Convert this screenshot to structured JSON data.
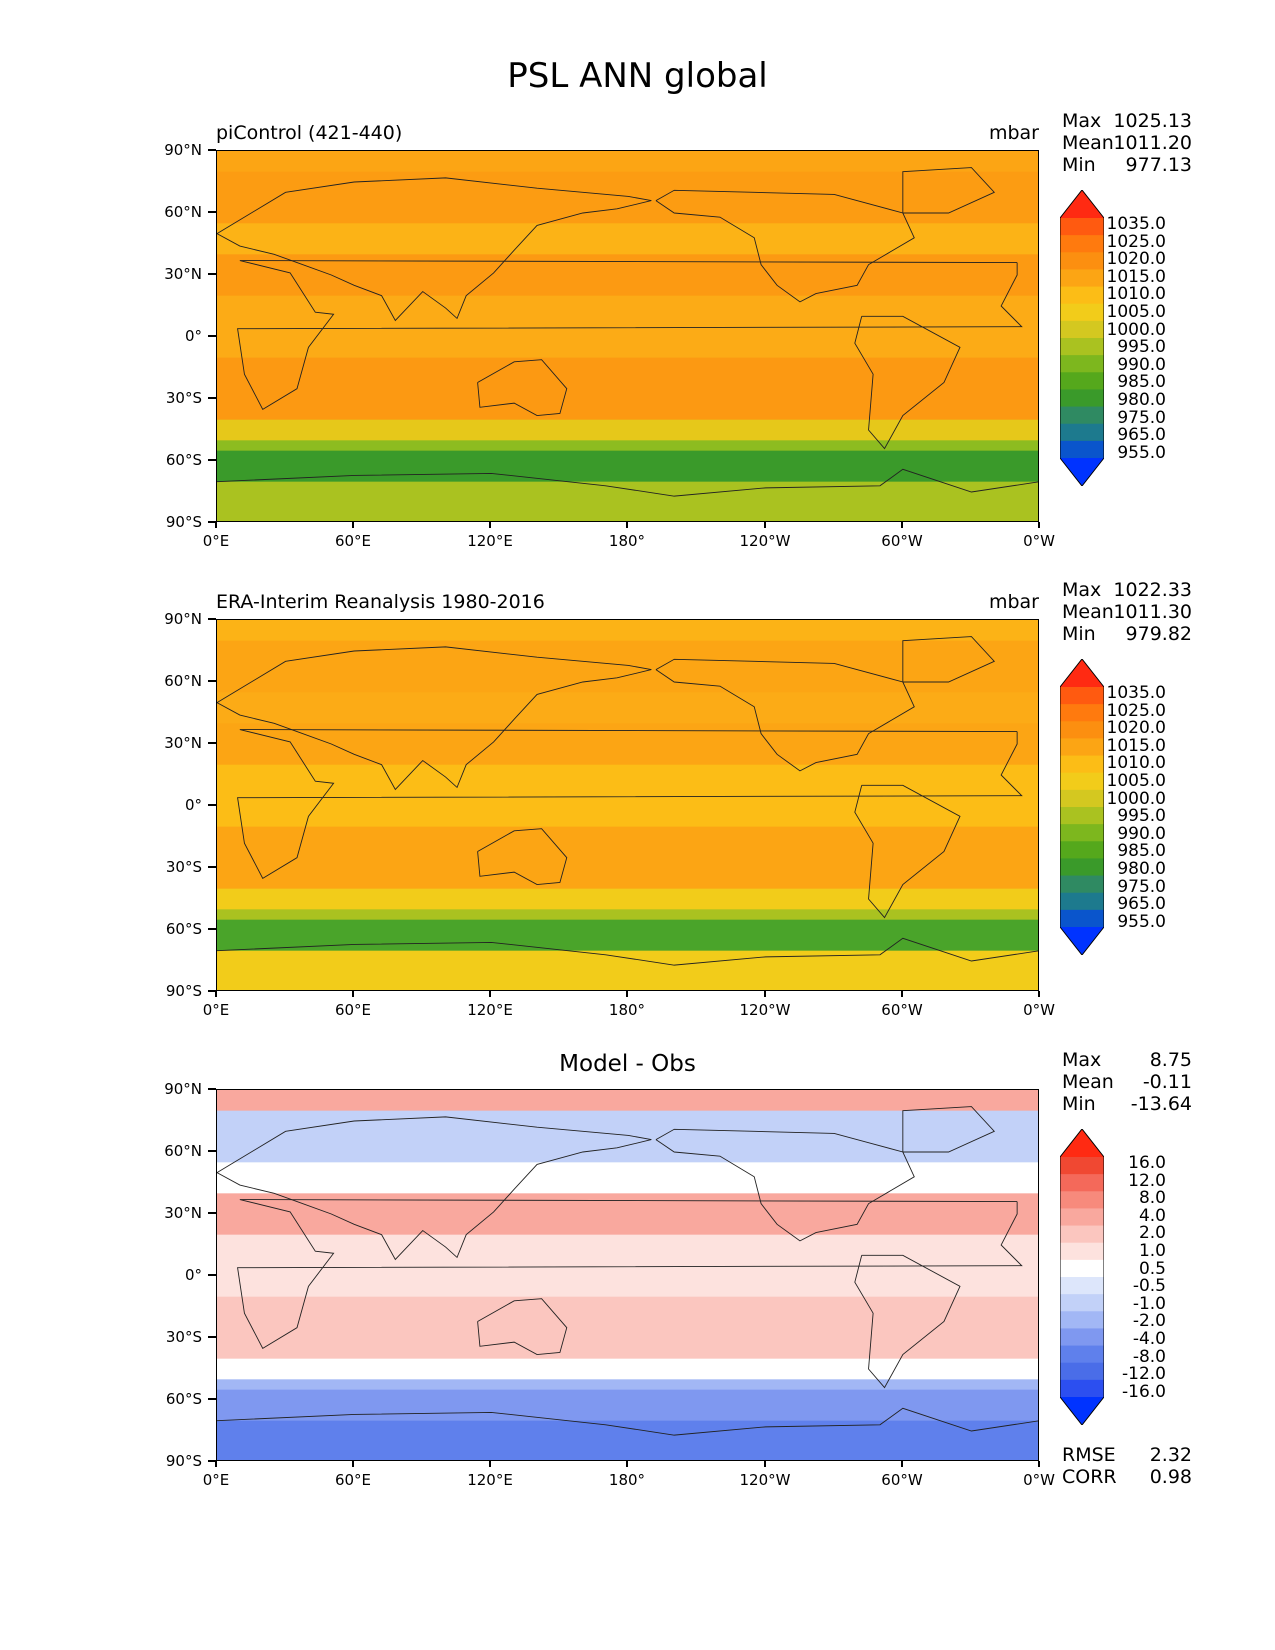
{
  "title": "PSL ANN global",
  "y_ticks": [
    "90°N",
    "60°N",
    "30°N",
    "0°",
    "30°S",
    "60°S",
    "90°S"
  ],
  "x_ticks": [
    "0°E",
    "60°E",
    "120°E",
    "180°",
    "120°W",
    "60°W",
    "0°W"
  ],
  "panels": [
    {
      "title_left": "piControl (421-440)",
      "title_center": "",
      "units": "mbar",
      "stats": [
        {
          "label": "Max",
          "value": "1025.13"
        },
        {
          "label": "Mean",
          "value": "1011.20"
        },
        {
          "label": "Min",
          "value": "977.13"
        }
      ],
      "colorbar_labels": [
        "1035.0",
        "1025.0",
        "1020.0",
        "1015.0",
        "1010.0",
        "1005.0",
        "1000.0",
        "995.0",
        "990.0",
        "985.0",
        "980.0",
        "975.0",
        "965.0",
        "955.0"
      ],
      "colorbar_colors": [
        "#ff2a12",
        "#ff5a10",
        "#ff7a0e",
        "#fc8f10",
        "#fca514",
        "#fcbd16",
        "#f2cc1a",
        "#d4c820",
        "#aac220",
        "#7db71e",
        "#55a81c",
        "#3a9a2a",
        "#2f8a62",
        "#1d7a8e",
        "#0a55cc",
        "#0033ff"
      ],
      "field": [
        {
          "band": "90N-80N",
          "color": "#fca514"
        },
        {
          "band": "80N-55N",
          "color": "#fc9c12"
        },
        {
          "band": "55N-40N",
          "color": "#fcb316"
        },
        {
          "band": "40N-20N",
          "color": "#fc9a12"
        },
        {
          "band": "20N-10S",
          "color": "#fcab16"
        },
        {
          "band": "10S-40S",
          "color": "#fc9912"
        },
        {
          "band": "40S-50S",
          "color": "#e6c81a"
        },
        {
          "band": "50S-55S",
          "color": "#8dbc20"
        },
        {
          "band": "55S-70S",
          "color": "#3a9a2a"
        },
        {
          "band": "70S-90S",
          "color": "#aac220"
        }
      ],
      "rmse": null
    },
    {
      "title_left": "ERA-Interim Reanalysis 1980-2016",
      "title_center": "",
      "units": "mbar",
      "stats": [
        {
          "label": "Max",
          "value": "1022.33"
        },
        {
          "label": "Mean",
          "value": "1011.30"
        },
        {
          "label": "Min",
          "value": "979.82"
        }
      ],
      "colorbar_labels": [
        "1035.0",
        "1025.0",
        "1020.0",
        "1015.0",
        "1010.0",
        "1005.0",
        "1000.0",
        "995.0",
        "990.0",
        "985.0",
        "980.0",
        "975.0",
        "965.0",
        "955.0"
      ],
      "colorbar_colors": [
        "#ff2a12",
        "#ff5a10",
        "#ff7a0e",
        "#fc8f10",
        "#fca514",
        "#fcbd16",
        "#f2cc1a",
        "#d4c820",
        "#aac220",
        "#7db71e",
        "#55a81c",
        "#3a9a2a",
        "#2f8a62",
        "#1d7a8e",
        "#0a55cc",
        "#0033ff"
      ],
      "field": [
        {
          "band": "90N-80N",
          "color": "#fcb316"
        },
        {
          "band": "80N-55N",
          "color": "#fca514"
        },
        {
          "band": "55N-40N",
          "color": "#fcab16"
        },
        {
          "band": "40N-20N",
          "color": "#fca514"
        },
        {
          "band": "20N-10S",
          "color": "#fcbd16"
        },
        {
          "band": "10S-40S",
          "color": "#fca514"
        },
        {
          "band": "40S-50S",
          "color": "#f2cc1a"
        },
        {
          "band": "50S-55S",
          "color": "#aac220"
        },
        {
          "band": "55S-70S",
          "color": "#4aa42a"
        },
        {
          "band": "70S-90S",
          "color": "#f2cc1a"
        }
      ],
      "rmse": null
    },
    {
      "title_left": "",
      "title_center": "Model - Obs",
      "units": "",
      "stats": [
        {
          "label": "Max",
          "value": "8.75"
        },
        {
          "label": "Mean",
          "value": "-0.11"
        },
        {
          "label": "Min",
          "value": "-13.64"
        }
      ],
      "colorbar_labels": [
        "16.0",
        "12.0",
        "8.0",
        "4.0",
        "2.0",
        "1.0",
        "0.5",
        "-0.5",
        "-1.0",
        "-2.0",
        "-4.0",
        "-8.0",
        "-12.0",
        "-16.0"
      ],
      "colorbar_colors": [
        "#ff2a12",
        "#f04832",
        "#f4695a",
        "#f78a7c",
        "#f9a89e",
        "#fbc6bf",
        "#fde2de",
        "#ffffff",
        "#dde6fb",
        "#c2d1f8",
        "#a2b7f5",
        "#7f98f0",
        "#5f80ec",
        "#4a6de8",
        "#2c4ff0",
        "#0033ff"
      ],
      "field": [
        {
          "band": "90N-80N",
          "color": "#f9a89e"
        },
        {
          "band": "80N-55N",
          "color": "#c2d1f8"
        },
        {
          "band": "55N-40N",
          "color": "#ffffff"
        },
        {
          "band": "40N-20N",
          "color": "#f9a89e"
        },
        {
          "band": "20N-10S",
          "color": "#fde2de"
        },
        {
          "band": "10S-40S",
          "color": "#fbc6bf"
        },
        {
          "band": "40S-50S",
          "color": "#ffffff"
        },
        {
          "band": "50S-55S",
          "color": "#a2b7f5"
        },
        {
          "band": "55S-70S",
          "color": "#7f98f0"
        },
        {
          "band": "70S-90S",
          "color": "#5f80ec"
        }
      ],
      "rmse": [
        {
          "label": "RMSE",
          "value": "2.32"
        },
        {
          "label": "CORR",
          "value": "0.98"
        }
      ]
    }
  ]
}
